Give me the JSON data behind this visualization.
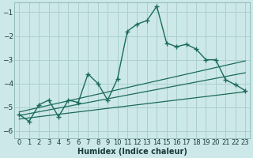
{
  "xlabel": "Humidex (Indice chaleur)",
  "background_color": "#cde8e8",
  "grid_color": "#aacfcf",
  "line_color": "#1a6b5a",
  "xlim": [
    -0.5,
    23.5
  ],
  "ylim": [
    -6.3,
    -0.6
  ],
  "yticks": [
    -6,
    -5,
    -4,
    -3,
    -2,
    -1
  ],
  "xticks": [
    0,
    1,
    2,
    3,
    4,
    5,
    6,
    7,
    8,
    9,
    10,
    11,
    12,
    13,
    14,
    15,
    16,
    17,
    18,
    19,
    20,
    21,
    22,
    23
  ],
  "main_x": [
    0,
    1,
    2,
    3,
    4,
    5,
    6,
    7,
    8,
    9,
    10,
    11,
    12,
    13,
    14,
    15,
    16,
    17,
    18,
    19,
    20,
    21,
    22,
    23
  ],
  "main_y": [
    -5.3,
    -5.6,
    -4.9,
    -4.7,
    -5.4,
    -4.7,
    -4.8,
    -3.6,
    -4.0,
    -4.7,
    -3.8,
    -1.8,
    -1.5,
    -1.35,
    -0.75,
    -2.3,
    -2.45,
    -2.35,
    -2.55,
    -3.0,
    -3.0,
    -3.85,
    -4.05,
    -4.3
  ]
}
